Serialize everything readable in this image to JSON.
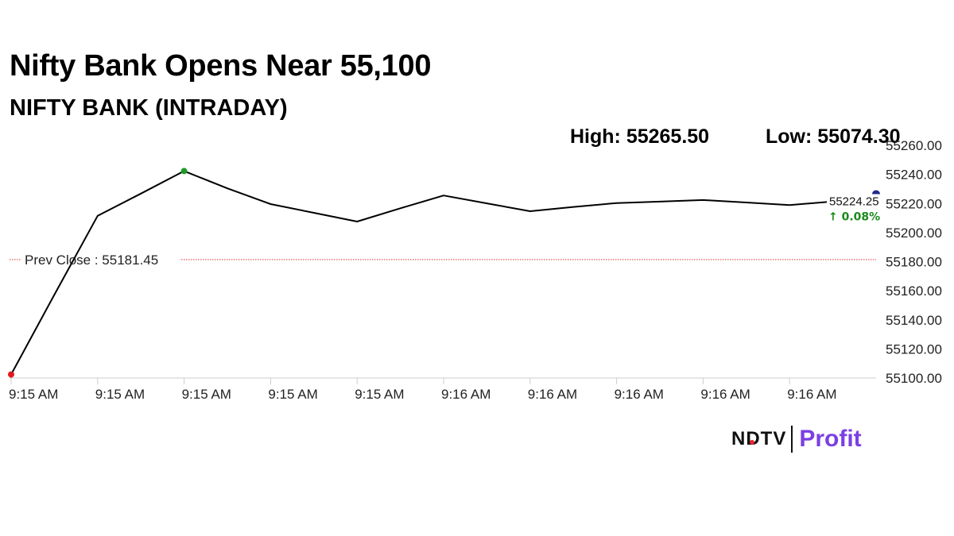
{
  "headline": "Nifty Bank Opens Near 55,100",
  "subheading": "NIFTY BANK (INTRADAY)",
  "stats": {
    "high": "High: 55265.50",
    "low": "Low: 55074.30"
  },
  "brand": {
    "ndtv": "NDTV",
    "profit": "Profit",
    "accent_color": "#e4262c",
    "profit_color": "#7b3fe4"
  },
  "chart_data": {
    "type": "line",
    "x": [
      "9:15 AM",
      "9:15 AM",
      "9:15 AM",
      "9:15 AM",
      "9:15 AM",
      "9:15 AM",
      "9:15 AM",
      "9:15 AM",
      "9:16 AM",
      "9:16 AM",
      "9:16 AM",
      "9:16 AM",
      "9:16 AM",
      "9:16 AM",
      "9:16 AM",
      "9:16 AM",
      "9:16 AM",
      "9:16 AM",
      "9:16 AM",
      "9:16 AM",
      "9:16 AM"
    ],
    "x_tick_labels": [
      "9:15 AM",
      "9:15 AM",
      "9:15 AM",
      "9:15 AM",
      "9:15 AM",
      "9:16 AM",
      "9:16 AM",
      "9:16 AM",
      "9:16 AM",
      "9:16 AM"
    ],
    "series": [
      {
        "values": [
          55102.4,
          55157.3,
          55211.5,
          55226.8,
          55242.3,
          55230.4,
          55219.6,
          55213.6,
          55207.6,
          55216.7,
          55225.5,
          55220.1,
          55214.7,
          55217.6,
          55220.3,
          55221.3,
          55222.4,
          55220.7,
          55218.9,
          55221.4,
          55224.25
        ],
        "color": "#000000"
      }
    ],
    "ylim": [
      55100,
      55260
    ],
    "y_ticks": [
      "55100.00",
      "55120.00",
      "55140.00",
      "55160.00",
      "55180.00",
      "55200.00",
      "55220.00",
      "55240.00",
      "55260.00"
    ],
    "prev_close": {
      "label": "Prev Close : 55181.45",
      "value": 55181.45,
      "color": "#e03030"
    },
    "last_value_label": "55224.25",
    "change_label": "↑ 0.08%",
    "change_color": "#1a8a1a",
    "markers": {
      "open_color": "#e0191f",
      "high_color": "#1f9a2a",
      "last_color": "#1f2a8a"
    },
    "grid": false,
    "legend": "none"
  }
}
